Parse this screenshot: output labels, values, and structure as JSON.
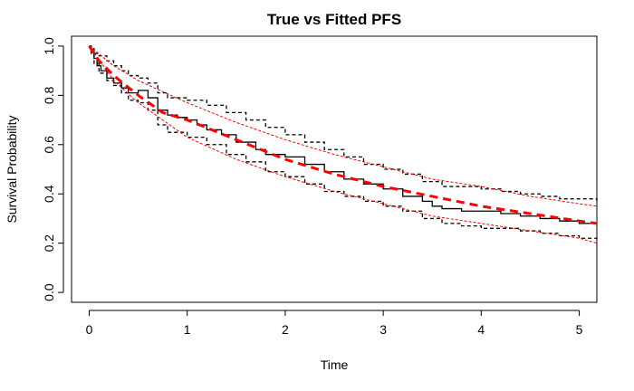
{
  "chart_data": {
    "type": "line",
    "title": "True vs Fitted PFS",
    "xlabel": "Time",
    "ylabel": "Survival Probability",
    "xlim": [
      -0.18,
      5.18
    ],
    "ylim": [
      -0.04,
      1.04
    ],
    "xticks": [
      0,
      1,
      2,
      3,
      4,
      5
    ],
    "yticks": [
      0.0,
      0.2,
      0.4,
      0.6,
      0.8,
      1.0
    ],
    "xtick_labels": [
      "0",
      "1",
      "2",
      "3",
      "4",
      "5"
    ],
    "ytick_labels": [
      "0.0",
      "0.2",
      "0.4",
      "0.6",
      "0.8",
      "1.0"
    ],
    "grid": false,
    "legend": "none",
    "series": [
      {
        "role": "km-estimate",
        "style": "step-solid",
        "color": "#000000",
        "x": [
          0,
          0.02,
          0.05,
          0.08,
          0.12,
          0.18,
          0.25,
          0.33,
          0.4,
          0.5,
          0.6,
          0.7,
          0.8,
          0.9,
          1.0,
          1.1,
          1.2,
          1.35,
          1.5,
          1.7,
          1.8,
          2.0,
          2.2,
          2.4,
          2.6,
          2.8,
          3.0,
          3.2,
          3.4,
          3.5,
          3.6,
          3.8,
          4.0,
          4.2,
          4.4,
          4.6,
          4.8,
          5.0,
          5.18
        ],
        "y": [
          1.0,
          0.98,
          0.95,
          0.92,
          0.9,
          0.87,
          0.85,
          0.83,
          0.81,
          0.82,
          0.79,
          0.74,
          0.72,
          0.71,
          0.7,
          0.68,
          0.66,
          0.64,
          0.61,
          0.58,
          0.56,
          0.55,
          0.52,
          0.49,
          0.46,
          0.44,
          0.42,
          0.39,
          0.37,
          0.35,
          0.34,
          0.33,
          0.33,
          0.32,
          0.31,
          0.3,
          0.29,
          0.28,
          0.28
        ]
      },
      {
        "role": "km-upper-ci",
        "style": "step-dashed",
        "color": "#000000",
        "x": [
          0,
          0.02,
          0.05,
          0.1,
          0.18,
          0.25,
          0.33,
          0.4,
          0.5,
          0.6,
          0.7,
          0.8,
          1.0,
          1.2,
          1.4,
          1.6,
          1.8,
          2.0,
          2.2,
          2.4,
          2.6,
          2.8,
          3.0,
          3.2,
          3.4,
          3.6,
          3.8,
          4.0,
          4.2,
          4.4,
          4.6,
          4.8,
          5.0,
          5.18
        ],
        "y": [
          1.0,
          0.99,
          0.97,
          0.96,
          0.94,
          0.92,
          0.9,
          0.88,
          0.87,
          0.85,
          0.81,
          0.79,
          0.78,
          0.76,
          0.73,
          0.7,
          0.67,
          0.64,
          0.61,
          0.58,
          0.55,
          0.52,
          0.5,
          0.48,
          0.45,
          0.43,
          0.43,
          0.42,
          0.41,
          0.4,
          0.39,
          0.38,
          0.38,
          0.36
        ]
      },
      {
        "role": "km-lower-ci",
        "style": "step-dashed",
        "color": "#000000",
        "x": [
          0,
          0.02,
          0.05,
          0.1,
          0.18,
          0.25,
          0.33,
          0.4,
          0.5,
          0.6,
          0.7,
          0.8,
          1.0,
          1.2,
          1.4,
          1.6,
          1.8,
          2.0,
          2.2,
          2.4,
          2.6,
          2.8,
          3.0,
          3.2,
          3.4,
          3.6,
          3.8,
          4.0,
          4.2,
          4.4,
          4.6,
          4.8,
          5.0,
          5.18
        ],
        "y": [
          1.0,
          0.97,
          0.93,
          0.89,
          0.86,
          0.84,
          0.81,
          0.78,
          0.77,
          0.74,
          0.68,
          0.65,
          0.63,
          0.6,
          0.56,
          0.53,
          0.49,
          0.47,
          0.44,
          0.41,
          0.39,
          0.37,
          0.35,
          0.33,
          0.3,
          0.28,
          0.27,
          0.26,
          0.26,
          0.25,
          0.24,
          0.23,
          0.22,
          0.21
        ]
      },
      {
        "role": "fitted",
        "style": "thick-dashed",
        "color": "#ff0000",
        "x": [
          0,
          0.1,
          0.25,
          0.5,
          0.75,
          1.0,
          1.25,
          1.5,
          2.0,
          2.5,
          3.0,
          3.5,
          4.0,
          4.5,
          5.0,
          5.18
        ],
        "y": [
          1.0,
          0.94,
          0.88,
          0.8,
          0.73,
          0.7,
          0.66,
          0.62,
          0.54,
          0.48,
          0.43,
          0.39,
          0.35,
          0.32,
          0.29,
          0.28
        ]
      },
      {
        "role": "fitted-upper",
        "style": "thin-dashed",
        "color": "#ff0000",
        "x": [
          0,
          0.25,
          0.5,
          1.0,
          1.5,
          2.0,
          2.5,
          3.0,
          3.5,
          4.0,
          4.5,
          5.0,
          5.18
        ],
        "y": [
          1.0,
          0.92,
          0.86,
          0.77,
          0.69,
          0.62,
          0.56,
          0.51,
          0.46,
          0.43,
          0.39,
          0.36,
          0.35
        ]
      },
      {
        "role": "fitted-lower",
        "style": "thin-dashed",
        "color": "#ff0000",
        "x": [
          0,
          0.25,
          0.5,
          1.0,
          1.5,
          2.0,
          2.5,
          3.0,
          3.5,
          4.0,
          4.5,
          5.0,
          5.18
        ],
        "y": [
          1.0,
          0.86,
          0.77,
          0.63,
          0.54,
          0.47,
          0.41,
          0.36,
          0.31,
          0.28,
          0.25,
          0.22,
          0.2
        ]
      }
    ]
  }
}
